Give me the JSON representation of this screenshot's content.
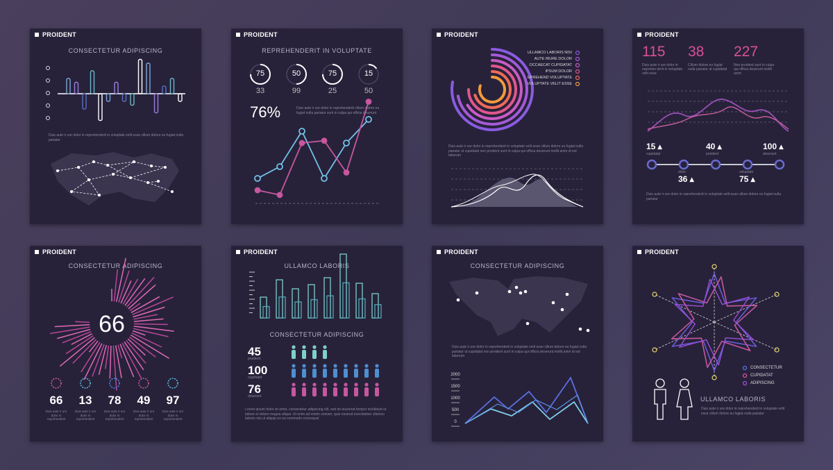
{
  "brand": "PROIDENT",
  "lorem_short": "Duis aute ir ure dolor in reprehenderit in voluptate velit esse cillum dolore eu fugiat nulla pariatur",
  "lorem_long": "Duis aute ir ure dolor in reprehenderit in voluptate velit esse cillum dolore eu fugiat nulla pariatur ut cupidatat non proident sunt in culpa qui officia deserunt mollit anim id est laborum",
  "lorem_tiny": "Duis aute ir ure dolor in reprehenderit",
  "card1": {
    "title": "CONSECTETUR ADIPISCING"
  },
  "card2": {
    "title": "REPREHENDERIT IN VOLUPTATE",
    "rings": [
      {
        "top": "75",
        "bottom": "33",
        "v": 0.75
      },
      {
        "top": "50",
        "bottom": "99",
        "v": 0.5
      },
      {
        "top": "75",
        "bottom": "25",
        "v": 0.75
      },
      {
        "top": "15",
        "bottom": "50",
        "v": 0.15
      }
    ],
    "percent": "76%",
    "desc": "Duis aute ir ure dolor in reprehenderit cillum dolore eu fugiat nulla pariatur sunt in culpa qui officia deserunt"
  },
  "card3": {
    "legend": [
      "ULLAMCO LABORIS NISI",
      "AUTE IRURE DOLOR",
      "OCCAECAT CUPIDATAT",
      "IPSUM DOLOR",
      "EPREHEND VOLUPTATE",
      "VOLUPTATE VELIT ESSE"
    ],
    "colors": [
      "#8a5be0",
      "#a35ad8",
      "#c85bc4",
      "#e0568e",
      "#f06a5a",
      "#f39a3c"
    ]
  },
  "card4": {
    "stats": [
      {
        "value": "115",
        "text": "Duis aute ir ure dolor in reprehen derit in voluptate velit esse"
      },
      {
        "value": "38",
        "text": "Cillum dolore eu fugiat nulla pariatur at cupidatat"
      },
      {
        "value": "227",
        "text": "Non proident sunt in culpa qui officia deserunt mollit anim"
      }
    ],
    "steps_top": [
      {
        "value": "15",
        "label": "cupidatat"
      },
      {
        "value": "40",
        "label": "proident"
      },
      {
        "value": "100",
        "label": "deserunt"
      }
    ],
    "steps_bottom": [
      {
        "value": "36",
        "label": "dolor"
      },
      {
        "value": "75",
        "label": "voluptate"
      }
    ]
  },
  "card5": {
    "title": "CONSECTETUR ADIPISCING",
    "center": "66",
    "stats": [
      "66",
      "13",
      "78",
      "49",
      "97"
    ]
  },
  "card6": {
    "title": "ULLAMCO LABORIS",
    "subtitle": "CONSECTETUR ADIPISCING",
    "people": [
      {
        "value": "45",
        "label": "proident"
      },
      {
        "value": "100",
        "label": "cupidatat"
      },
      {
        "value": "76",
        "label": "deserunt"
      }
    ],
    "footer": "Lorem ipsum dolor sit amet, consectetur adipiscing elit, sed do eiusmod tempor incididunt ut labore et dolore magna aliqua. Ut enim ad minim veniam, quis nostrud exercitation ullamco laboris nisi ut aliquip ex ea commodo consequat"
  },
  "card7": {
    "title": "CONSECTETUR ADIPISCING",
    "yticks": [
      "2000",
      "1500",
      "1000",
      "500",
      "0"
    ]
  },
  "card8": {
    "legend": [
      "CONSECTETUR",
      "CUPIDATAT",
      "ADIPISCING"
    ],
    "subtitle": "ULLAMCO LABORIS"
  },
  "chart_data": [
    {
      "type": "bar",
      "title": "CONSECTETUR ADIPISCING",
      "values": [
        4,
        3,
        -4,
        6,
        -7,
        -2,
        3,
        -2,
        -3,
        9,
        8,
        -5,
        2,
        4,
        -2
      ],
      "note": "diverging bars, relative heights"
    },
    {
      "type": "line",
      "title": "REPREHENDERIT IN VOLUPTATE",
      "series": [
        {
          "values": [
            2,
            3,
            6,
            2,
            5,
            7
          ]
        },
        {
          "values": [
            1,
            0.6,
            5,
            5.2,
            2.5,
            8.5
          ]
        }
      ]
    },
    {
      "type": "bar",
      "title": "ULLAMCO LABORIS",
      "values": [
        3.0,
        5.5,
        4.2,
        4.8,
        5.8,
        9.2,
        5.0,
        3.5
      ]
    }
  ]
}
